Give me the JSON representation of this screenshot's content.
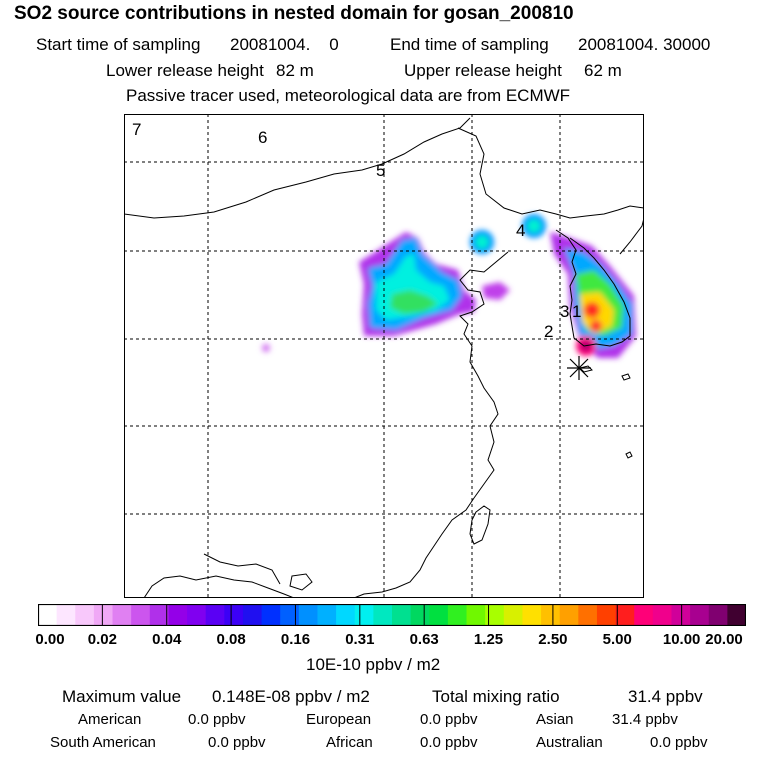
{
  "header": {
    "title": "SO2 source contributions in nested domain for gosan_200810",
    "start_label": "Start time of sampling",
    "start_value": "20081004.    0",
    "end_label": "End time of sampling",
    "end_value": "20081004. 30000",
    "lower_label": "Lower release height",
    "lower_value": "82 m",
    "upper_label": "Upper release height",
    "upper_value": "62 m",
    "note": "Passive tracer used, meteorological data are from ECMWF"
  },
  "map": {
    "region_labels": [
      {
        "label": "7"
      },
      {
        "label": "6"
      },
      {
        "label": "5"
      },
      {
        "label": "4"
      },
      {
        "label": "3"
      },
      {
        "label": "2"
      },
      {
        "label": "1"
      }
    ],
    "receptor_marker": "asterisk-icon"
  },
  "colorbar": {
    "ticks": [
      "0.00",
      "0.02",
      "0.04",
      "0.08",
      "0.16",
      "0.31",
      "0.63",
      "1.25",
      "2.50",
      "5.00",
      "10.00",
      "20.00"
    ],
    "colors": [
      "#ffffff",
      "#fde6ff",
      "#f8c8fb",
      "#f0a8f6",
      "#e080f2",
      "#cc55ee",
      "#b030ea",
      "#9400e8",
      "#8000f0",
      "#5a00f4",
      "#3c00f6",
      "#2010f0",
      "#0030ff",
      "#0060ff",
      "#0090ff",
      "#00b0ff",
      "#00d8ff",
      "#00f0f0",
      "#00e8c0",
      "#00e090",
      "#00d860",
      "#00e040",
      "#30f020",
      "#70f800",
      "#a8ff00",
      "#d8f000",
      "#ffe000",
      "#ffc000",
      "#ffa000",
      "#ff7000",
      "#ff4000",
      "#ff1e1e",
      "#ff0078",
      "#f0008c",
      "#d0009a",
      "#a80090",
      "#800070",
      "#400030"
    ],
    "units": "10E-10 ppbv / m2"
  },
  "summary": {
    "max_label": "Maximum value",
    "max_value": "0.148E-08 ppbv / m2",
    "total_label": "Total mixing ratio",
    "total_value": "31.4 ppbv",
    "regions": [
      {
        "name": "American",
        "value": "0.0 ppbv"
      },
      {
        "name": "European",
        "value": "0.0 ppbv"
      },
      {
        "name": "Asian",
        "value": "31.4 ppbv"
      },
      {
        "name": "South American",
        "value": "0.0 ppbv"
      },
      {
        "name": "African",
        "value": "0.0 ppbv"
      },
      {
        "name": "Australian",
        "value": "0.0 ppbv"
      }
    ]
  }
}
